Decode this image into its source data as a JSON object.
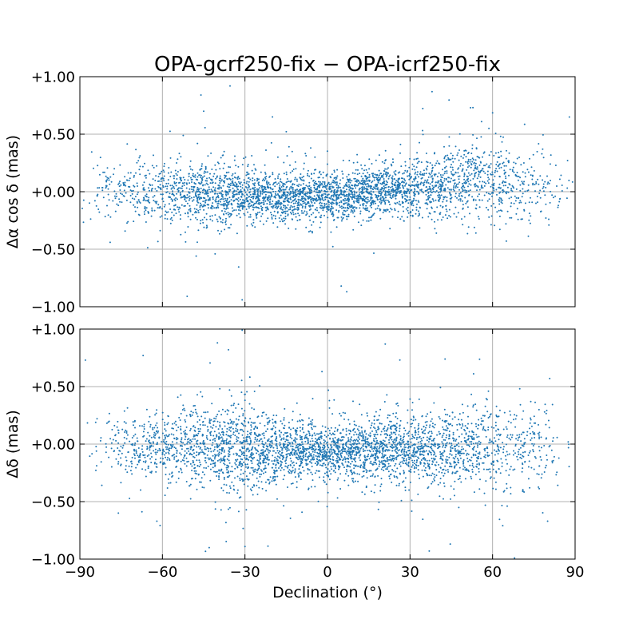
{
  "chart_data": {
    "type": "scatter",
    "title": "OPA-gcrf250-fix − OPA-icrf250-fix",
    "xlabel": "Declination (°)",
    "xlim": [
      -90,
      90
    ],
    "x_ticks": [
      -90,
      -60,
      -30,
      0,
      30,
      60,
      90
    ],
    "x_tick_labels": [
      "−90",
      "−60",
      "−30",
      "0",
      "30",
      "60",
      "90"
    ],
    "point_color": "#1f77b4",
    "grid": true,
    "panels": [
      {
        "ylabel": "Δα cos δ (mas)",
        "ylim": [
          -1.0,
          1.0
        ],
        "y_ticks": [
          -1.0,
          -0.5,
          0.0,
          0.5,
          1.0
        ],
        "y_tick_labels": [
          "−1.00",
          "−0.50",
          "+0.00",
          "+0.50",
          "+1.00"
        ],
        "trend": [
          [
            -90,
            0.02
          ],
          [
            -60,
            0.0
          ],
          [
            -30,
            -0.03
          ],
          [
            -20,
            -0.05
          ],
          [
            0,
            -0.04
          ],
          [
            10,
            -0.02
          ],
          [
            20,
            0.0
          ],
          [
            30,
            0.02
          ],
          [
            45,
            0.08
          ],
          [
            55,
            0.12
          ],
          [
            65,
            0.08
          ],
          [
            90,
            0.02
          ]
        ],
        "spread": [
          [
            -90,
            0.12
          ],
          [
            -45,
            0.14
          ],
          [
            -20,
            0.1
          ],
          [
            0,
            0.1
          ],
          [
            30,
            0.12
          ],
          [
            60,
            0.18
          ],
          [
            90,
            0.17
          ]
        ],
        "outliers": [
          [
            -46,
            0.84
          ],
          [
            -45,
            0.7
          ],
          [
            -20,
            0.65
          ],
          [
            7,
            -0.87
          ],
          [
            5,
            -0.82
          ],
          [
            38,
            0.87
          ],
          [
            -31,
            -0.94
          ],
          [
            -51,
            -0.91
          ],
          [
            -79,
            -0.44
          ],
          [
            -14,
            0.39
          ],
          [
            56,
            0.61
          ],
          [
            52,
            0.73
          ],
          [
            65,
            -0.43
          ]
        ]
      },
      {
        "ylabel": "Δδ (mas)",
        "ylim": [
          -1.0,
          1.0
        ],
        "y_ticks": [
          -1.0,
          -0.5,
          0.0,
          0.5,
          1.0
        ],
        "y_tick_labels": [
          "−1.00",
          "−0.50",
          "+0.00",
          "+0.50",
          "+1.00"
        ],
        "trend": [
          [
            -90,
            0.0
          ],
          [
            -60,
            -0.02
          ],
          [
            -30,
            -0.06
          ],
          [
            -15,
            -0.05
          ],
          [
            0,
            -0.05
          ],
          [
            20,
            -0.04
          ],
          [
            40,
            -0.05
          ],
          [
            60,
            -0.04
          ],
          [
            90,
            -0.02
          ]
        ],
        "spread": [
          [
            -90,
            0.15
          ],
          [
            -60,
            0.15
          ],
          [
            -35,
            0.2
          ],
          [
            -20,
            0.15
          ],
          [
            0,
            0.12
          ],
          [
            30,
            0.15
          ],
          [
            60,
            0.18
          ],
          [
            90,
            0.17
          ]
        ],
        "outliers": [
          [
            -40,
            0.88
          ],
          [
            -31,
            0.99
          ],
          [
            -36,
            0.82
          ],
          [
            21,
            0.87
          ],
          [
            -88,
            0.73
          ],
          [
            -67,
            0.77
          ],
          [
            -62,
            -0.67
          ],
          [
            -43,
            -0.9
          ],
          [
            -30,
            -0.89
          ],
          [
            37,
            -0.93
          ],
          [
            68,
            -0.99
          ],
          [
            80,
            -0.67
          ],
          [
            -76,
            -0.6
          ],
          [
            -2,
            0.63
          ]
        ]
      }
    ]
  }
}
